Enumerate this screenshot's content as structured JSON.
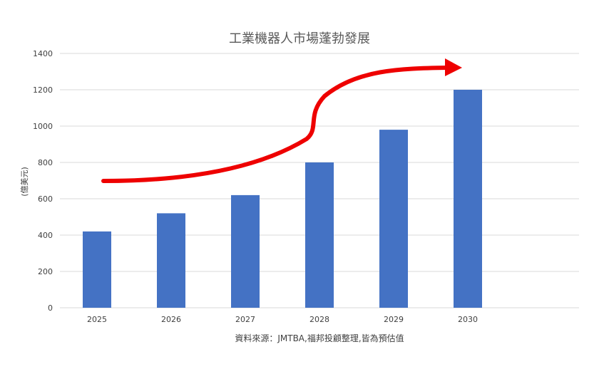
{
  "chart_data": {
    "type": "bar",
    "title": "工業機器人市場蓬勃發展",
    "ylabel": "(億美元)",
    "xlabel": "資料來源：JMTBA,福邦投顧整理,皆為預估值",
    "categories": [
      "2025",
      "2026",
      "2027",
      "2028",
      "2029",
      "2030"
    ],
    "values": [
      420,
      520,
      620,
      800,
      980,
      1200
    ],
    "ylim": [
      0,
      1400
    ],
    "yticks": [
      0,
      200,
      400,
      600,
      800,
      1000,
      1200,
      1400
    ],
    "grid": true,
    "legend": "none",
    "bar_color": "#4472C4",
    "arrow_color": "#EE0000",
    "annotation": "upward trend arrow"
  }
}
